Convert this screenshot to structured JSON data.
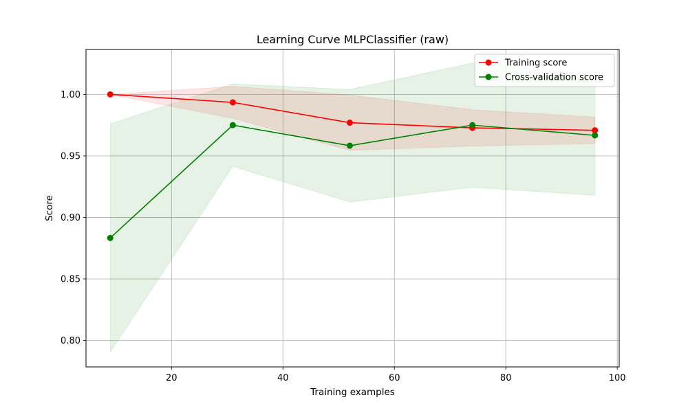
{
  "chart_data": {
    "type": "line",
    "title": "Learning Curve MLPClassifier (raw)",
    "xlabel": "Training examples",
    "ylabel": "Score",
    "xlim": [
      4.65,
      100.35
    ],
    "ylim": [
      0.7785,
      1.0365
    ],
    "x_ticks": [
      20,
      40,
      60,
      80,
      100
    ],
    "x_tick_labels": [
      "20",
      "40",
      "60",
      "80",
      "100"
    ],
    "y_ticks": [
      0.8,
      0.85,
      0.9,
      0.95,
      1.0
    ],
    "y_tick_labels": [
      "0.80",
      "0.85",
      "0.90",
      "0.95",
      "1.00"
    ],
    "grid": true,
    "legend_position": "upper-right",
    "x": [
      9,
      31,
      52,
      74,
      96
    ],
    "series": [
      {
        "name": "Training score",
        "color": "#ff0000",
        "band_color": "#ff0000",
        "marker": "circle",
        "values": [
          1.0,
          0.9935,
          0.977,
          0.9728,
          0.9708
        ],
        "band_upper": [
          1.0,
          1.0065,
          0.9995,
          0.9875,
          0.9815
        ],
        "band_lower": [
          1.0,
          0.9805,
          0.9545,
          0.958,
          0.96
        ]
      },
      {
        "name": "Cross-validation score",
        "color": "#008000",
        "band_color": "#008000",
        "marker": "circle",
        "values": [
          0.8833,
          0.975,
          0.9583,
          0.975,
          0.9667
        ],
        "band_upper": [
          0.976,
          1.0085,
          1.004,
          1.0255,
          1.0155
        ],
        "band_lower": [
          0.7905,
          0.9415,
          0.9125,
          0.9245,
          0.918
        ]
      }
    ]
  }
}
